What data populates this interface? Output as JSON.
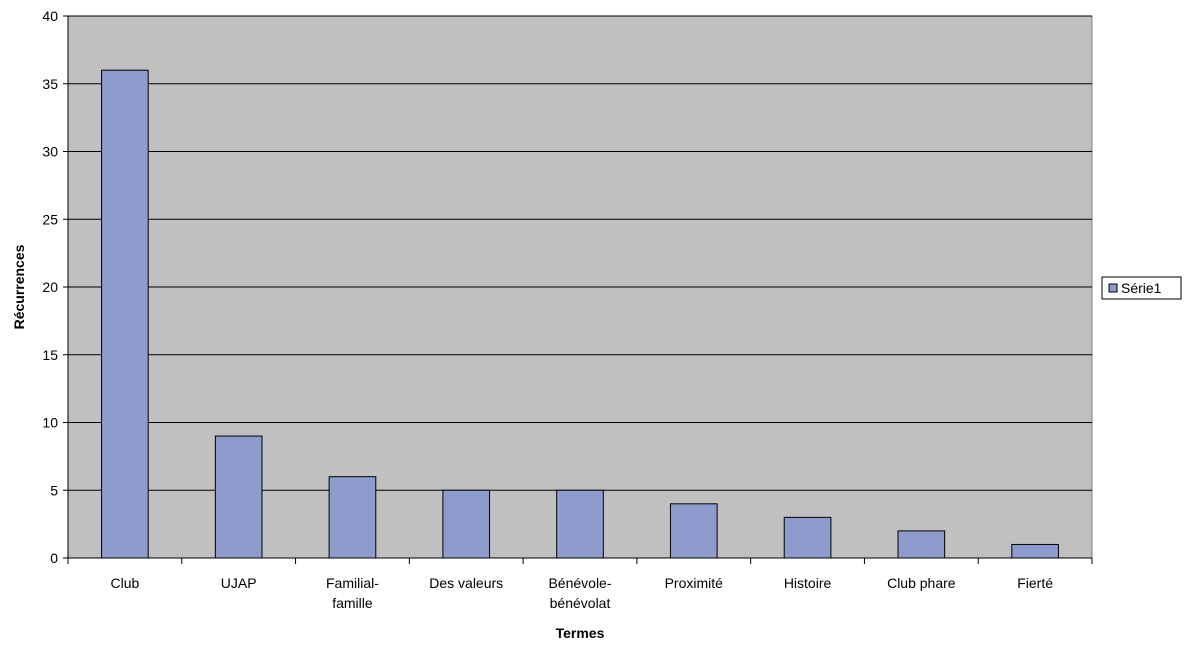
{
  "chart_data": {
    "type": "bar",
    "title": "",
    "xlabel": "Termes",
    "ylabel": "Récurrences",
    "categories": [
      [
        "Club"
      ],
      [
        "UJAP"
      ],
      [
        "Familial-",
        "famille"
      ],
      [
        "Des valeurs"
      ],
      [
        "Bénévole-",
        "bénévolat"
      ],
      [
        "Proximité"
      ],
      [
        "Histoire"
      ],
      [
        "Club phare"
      ],
      [
        "Fierté"
      ]
    ],
    "series": [
      {
        "name": "Série1",
        "values": [
          36,
          9,
          6,
          5,
          5,
          4,
          3,
          2,
          1
        ]
      }
    ],
    "ylim": [
      0,
      40
    ],
    "ytick_step": 5,
    "yticks": [
      "0",
      "5",
      "10",
      "15",
      "20",
      "25",
      "30",
      "35",
      "40"
    ],
    "grid": true,
    "legend_position": "right",
    "colors": {
      "plot_background": "#c0c0c0",
      "bar_fill": "#8e9bcc",
      "bar_stroke": "#000000",
      "gridline": "#000000"
    }
  }
}
